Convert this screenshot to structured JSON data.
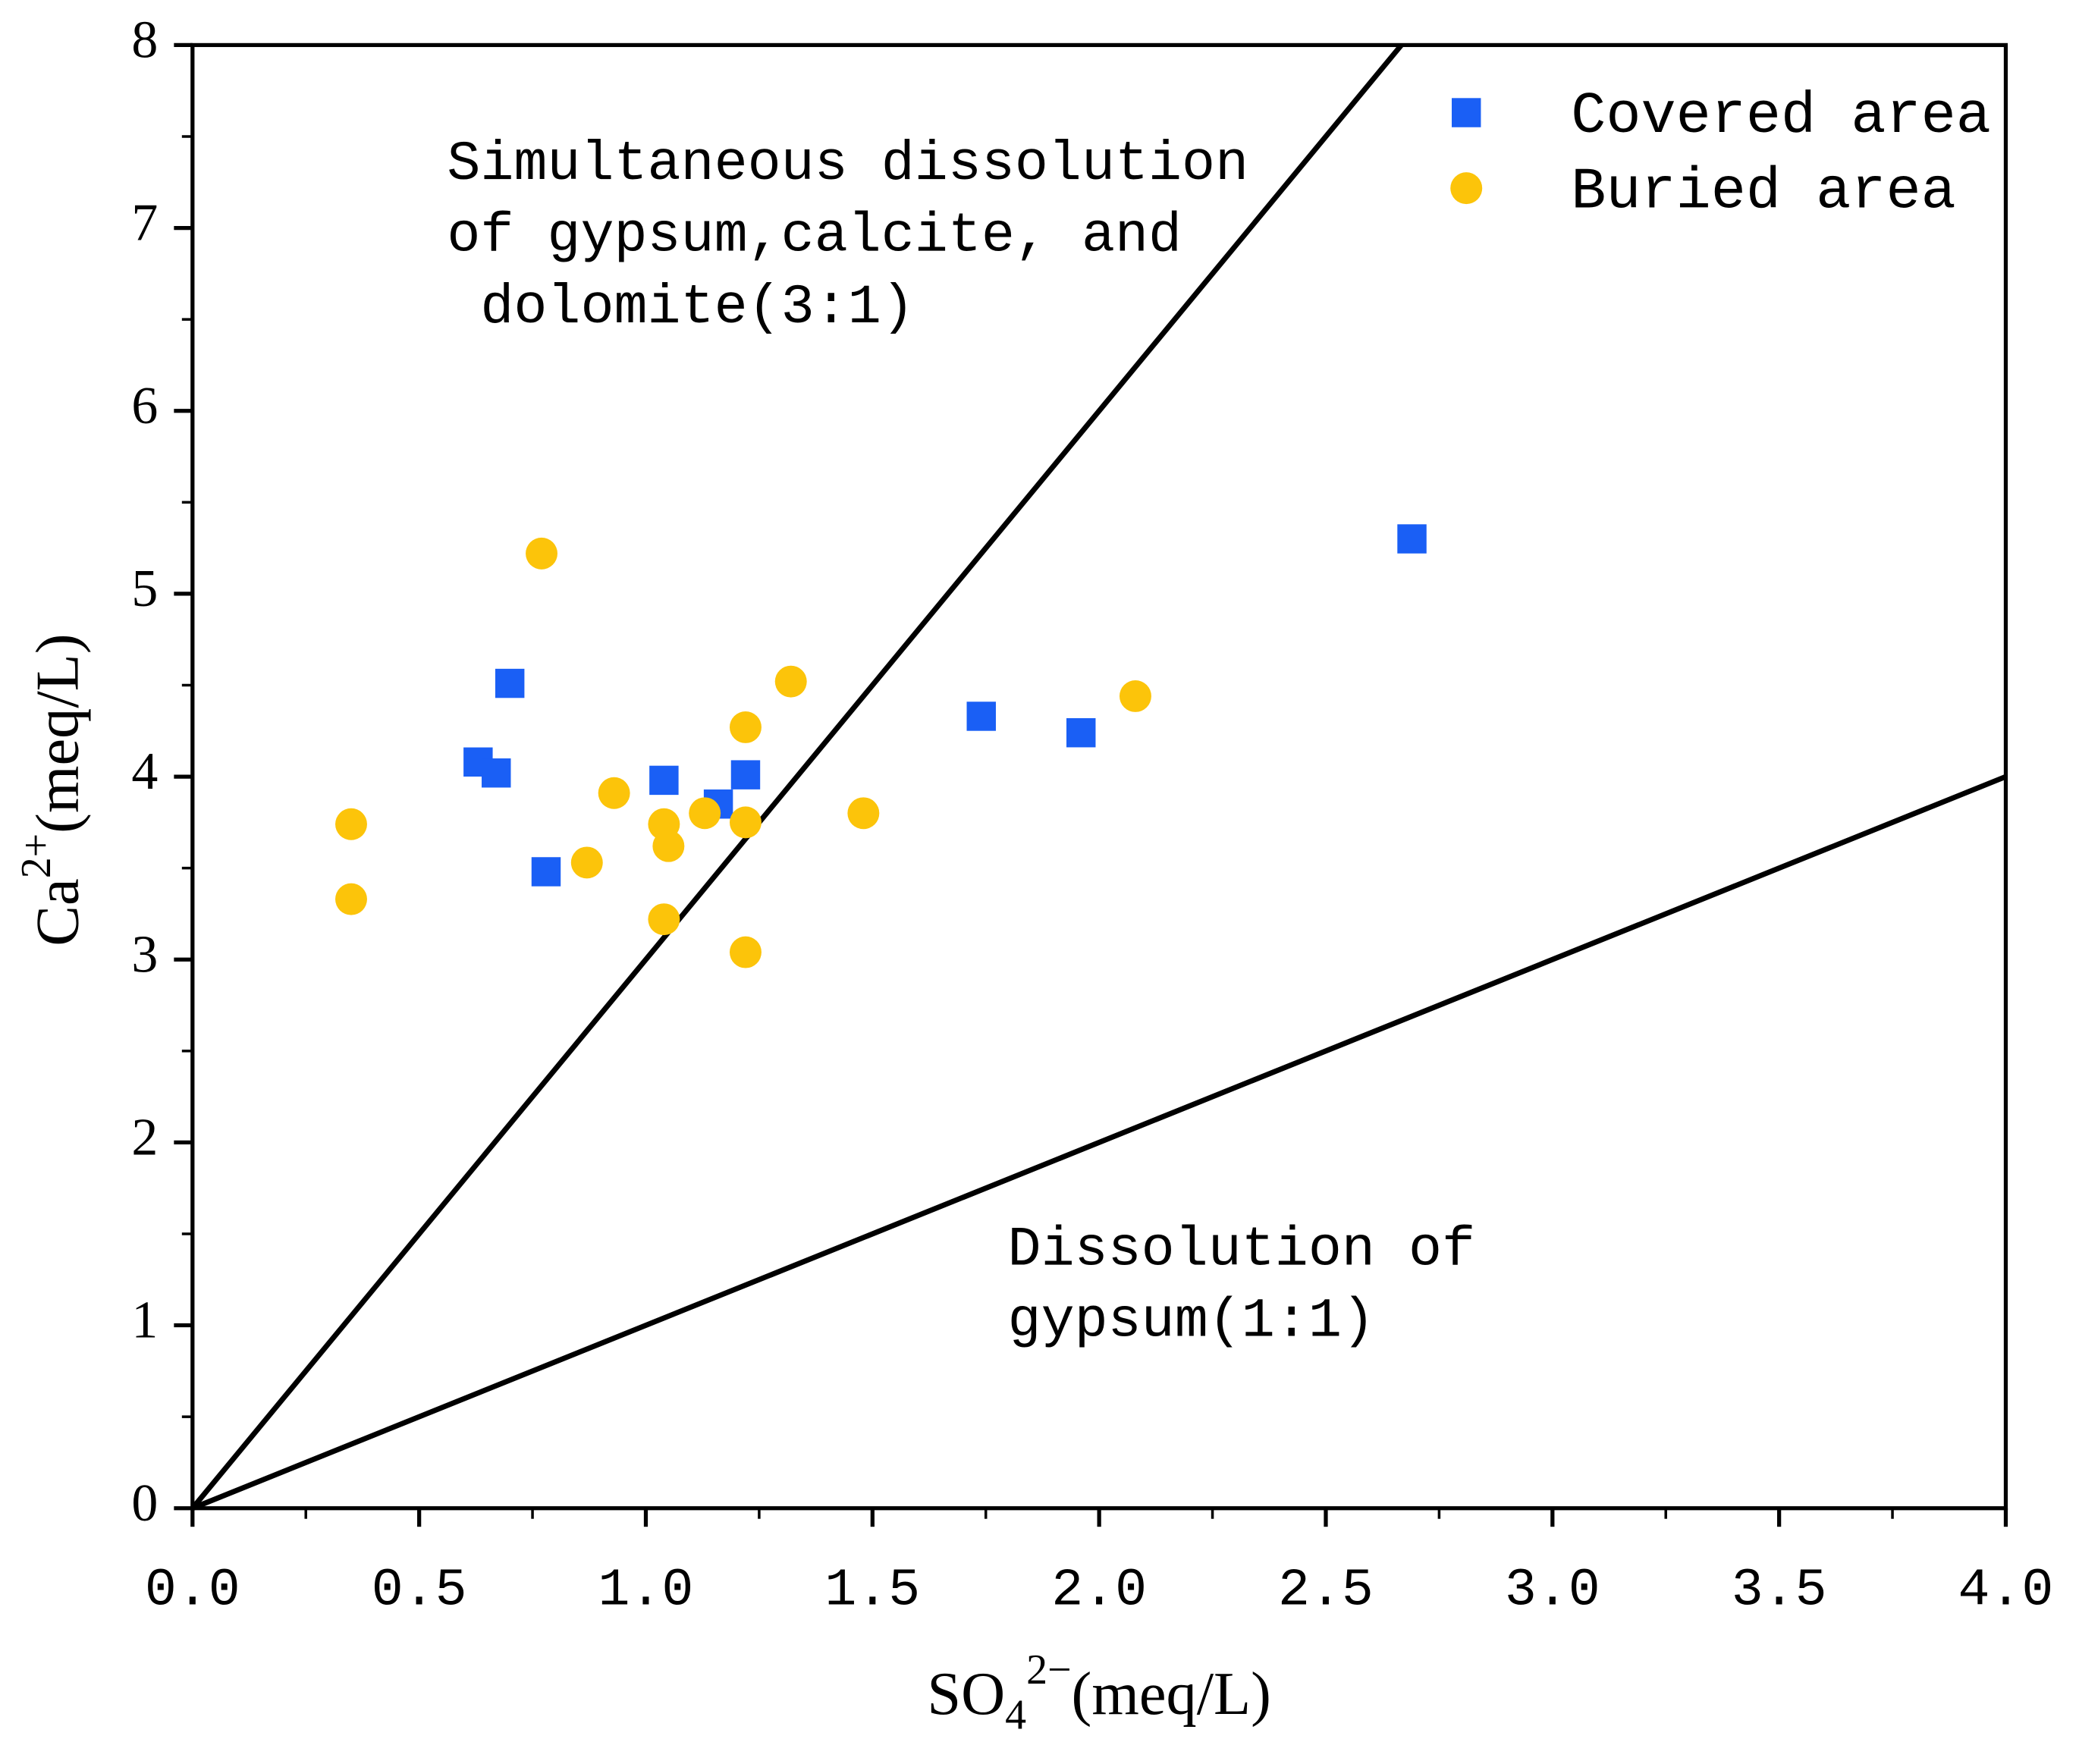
{
  "chart_data": {
    "type": "scatter",
    "xlabel": {
      "base": "SO",
      "sub": "4",
      "sup": "2−",
      "unit": "(meq/L)"
    },
    "ylabel": {
      "base": "Ca",
      "sup": "2+",
      "unit": "(meq/L)"
    },
    "xlim": [
      0,
      4
    ],
    "ylim": [
      0,
      8
    ],
    "xticks": [
      {
        "value": 0,
        "label": "0.0"
      },
      0.5,
      {
        "value": 1,
        "label": "1.0"
      },
      1.5,
      {
        "value": 2,
        "label": "2.0"
      },
      2.5,
      {
        "value": 3,
        "label": "3.0"
      },
      3.5,
      {
        "value": 4,
        "label": "4.0"
      }
    ],
    "yticks": [
      0,
      1,
      2,
      3,
      4,
      5,
      6,
      7,
      8
    ],
    "xminor_step": 0.25,
    "yminor_step": 0.5,
    "legend": "top-right",
    "series": [
      {
        "name": "Covered area",
        "color": "#1a5ff5",
        "marker": "square",
        "x": [
          0.63,
          0.67,
          0.7,
          0.78,
          1.04,
          1.16,
          1.22,
          1.74,
          1.96,
          2.69
        ],
        "values": [
          4.08,
          4.02,
          4.51,
          3.48,
          3.98,
          3.85,
          4.01,
          4.33,
          4.24,
          5.3
        ]
      },
      {
        "name": "Buried area",
        "color": "#fcc40a",
        "marker": "circle",
        "x": [
          0.35,
          0.35,
          0.77,
          0.87,
          0.93,
          1.04,
          1.04,
          1.05,
          1.13,
          1.22,
          1.22,
          1.22,
          1.32,
          1.48,
          2.08
        ],
        "values": [
          3.74,
          3.33,
          5.22,
          3.53,
          3.91,
          3.74,
          3.22,
          3.62,
          3.8,
          4.27,
          3.75,
          3.04,
          4.52,
          3.8,
          4.44
        ]
      }
    ],
    "reference_lines": [
      {
        "slope": 3,
        "label": [
          "Simultaneous dissolution",
          "of gypsum,calcite, and",
          " dolomite(3:1)"
        ]
      },
      {
        "slope": 1,
        "label": [
          "Dissolution of",
          "gypsum(1:1)"
        ]
      }
    ]
  }
}
